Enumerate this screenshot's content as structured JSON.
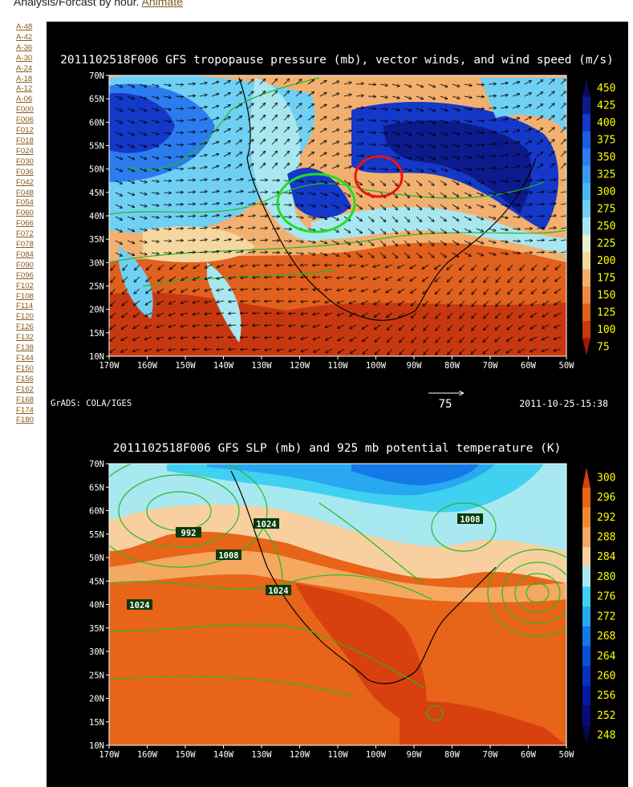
{
  "header": {
    "text": "Analysis/Forcast by hour. ",
    "animate_label": "Animate"
  },
  "sidebar": {
    "links": [
      "A-48",
      "A-42",
      "A-36",
      "A-30",
      "A-24",
      "A-18",
      "A-12",
      "A-06",
      "F000",
      "F006",
      "F012",
      "F018",
      "F024",
      "F030",
      "F036",
      "F042",
      "F048",
      "F054",
      "F060",
      "F066",
      "F072",
      "F078",
      "F084",
      "F090",
      "F096",
      "F102",
      "F108",
      "F114",
      "F120",
      "F126",
      "F132",
      "F138",
      "F144",
      "F150",
      "F156",
      "F162",
      "F168",
      "F174",
      "F180"
    ]
  },
  "map_top": {
    "title": "2011102518F006 GFS tropopause pressure (mb), vector winds, and wind speed (m/s)",
    "lat_labels": [
      "70N",
      "65N",
      "60N",
      "55N",
      "50N",
      "45N",
      "40N",
      "35N",
      "30N",
      "25N",
      "20N",
      "15N",
      "10N"
    ],
    "lon_labels": [
      "170W",
      "160W",
      "150W",
      "140W",
      "130W",
      "120W",
      "110W",
      "100W",
      "90W",
      "80W",
      "70W",
      "60W",
      "50W"
    ],
    "colorbar": [
      "450",
      "425",
      "400",
      "375",
      "350",
      "325",
      "300",
      "275",
      "250",
      "225",
      "200",
      "175",
      "150",
      "125",
      "100",
      "75"
    ],
    "colorbar_colors": [
      "#0a0a5a",
      "#0c1a8c",
      "#1438c8",
      "#1e5ae6",
      "#2c7cf0",
      "#3a9af0",
      "#4ab8f4",
      "#70d0f4",
      "#a8e6f0",
      "#e8f0d0",
      "#f4d8a0",
      "#f2b070",
      "#ec8a42",
      "#e0601e",
      "#c83810",
      "#a01808"
    ],
    "credit": "GrADS: COLA/IGES",
    "vector_ref": "75",
    "timestamp": "2011-10-25-15:38"
  },
  "map_bottom": {
    "title": "2011102518F006 GFS SLP (mb) and 925 mb potential temperature (K)",
    "lat_labels": [
      "70N",
      "65N",
      "60N",
      "55N",
      "50N",
      "45N",
      "40N",
      "35N",
      "30N",
      "25N",
      "20N",
      "15N",
      "10N"
    ],
    "lon_labels": [
      "170W",
      "160W",
      "150W",
      "140W",
      "130W",
      "120W",
      "110W",
      "100W",
      "90W",
      "80W",
      "70W",
      "60W",
      "50W"
    ],
    "colorbar": [
      "300",
      "296",
      "292",
      "288",
      "284",
      "280",
      "276",
      "272",
      "268",
      "264",
      "260",
      "256",
      "252",
      "248"
    ],
    "colorbar_colors": [
      "#d84010",
      "#e86418",
      "#f08830",
      "#f4a860",
      "#f8d0a0",
      "#a8e8f0",
      "#40d0f0",
      "#28a8f0",
      "#1478e6",
      "#0a50d8",
      "#0830c0",
      "#0818a0",
      "#080c78",
      "#060850"
    ],
    "contour_labels": [
      "992",
      "1024",
      "1008",
      "1024",
      "1008",
      "1024"
    ]
  }
}
